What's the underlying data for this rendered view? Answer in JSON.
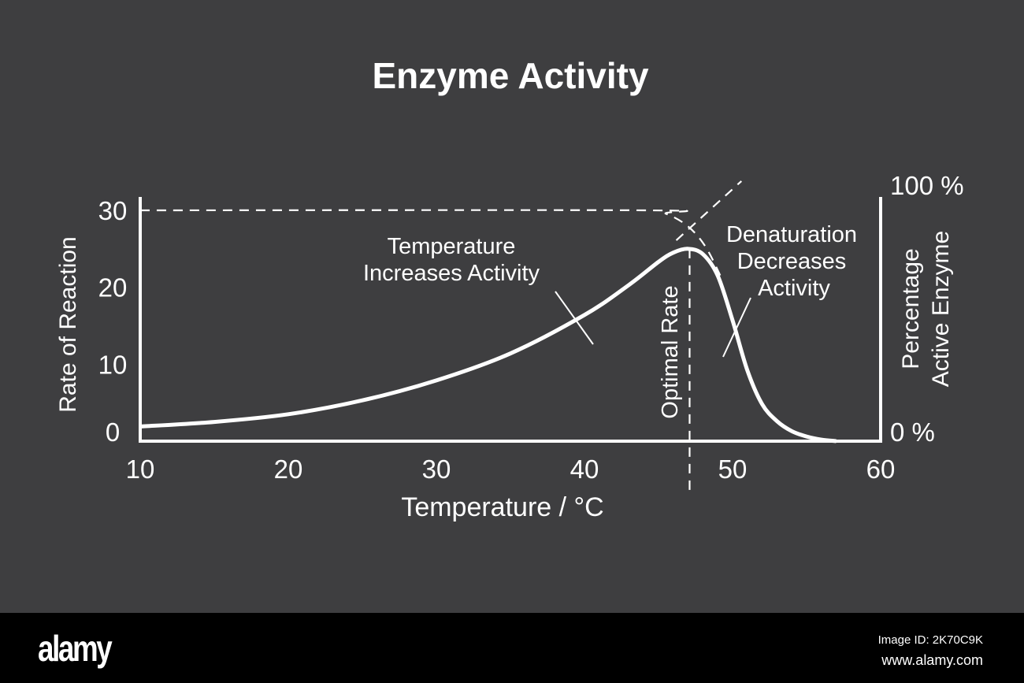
{
  "chart_data": {
    "type": "line",
    "title": "Enzyme Activity",
    "xlabel": "Temperature / °C",
    "ylabel": "Rate of Reaction",
    "y2label_lines": [
      "Percentage",
      "Active Enzyme"
    ],
    "xlim": [
      10,
      60
    ],
    "ylim": [
      0,
      30
    ],
    "y2lim": [
      0,
      100
    ],
    "xticks": [
      "10",
      "20",
      "30",
      "40",
      "50",
      "60"
    ],
    "yticks": [
      "0",
      "10",
      "20",
      "30"
    ],
    "y2ticks": [
      "0 %",
      "100 %"
    ],
    "grid": false,
    "series": [
      {
        "axis": "left",
        "style": "solid",
        "x": [
          10,
          15,
          20,
          25,
          30,
          35,
          40,
          43,
          45,
          46,
          47,
          48,
          49,
          50,
          51,
          52,
          53,
          54,
          55,
          56,
          57
        ],
        "y": [
          1.9,
          2.5,
          3.5,
          5.3,
          7.9,
          11.4,
          16.4,
          20.3,
          23.3,
          24.5,
          25,
          24.3,
          21.5,
          15.7,
          9.2,
          4.8,
          2.6,
          1.3,
          0.6,
          0.2,
          0
        ]
      },
      {
        "axis": "right",
        "style": "dashed",
        "x": [
          10,
          44,
          45.5,
          47,
          48.2,
          49.3
        ],
        "y": [
          100,
          100,
          98.5,
          93,
          84,
          70
        ]
      },
      {
        "axis": "left",
        "style": "dashed",
        "x": [
          46.2,
          50.6
        ],
        "y": [
          26.1,
          33.8
        ]
      }
    ],
    "optimal_temperature": 47.1,
    "annotations": {
      "increase": [
        "Temperature",
        "Increases Activity"
      ],
      "optimal": "Optimal Rate",
      "denature": [
        "Denaturation",
        "Decreases",
        "Activity"
      ]
    },
    "colors": {
      "background": "#3e3e40",
      "line": "#ffffff",
      "watermark": "#a5a5a5"
    }
  },
  "watermark": {
    "logo": "alamy",
    "image_id": "Image ID: 2K70C9K",
    "url": "www.alamy.com"
  }
}
